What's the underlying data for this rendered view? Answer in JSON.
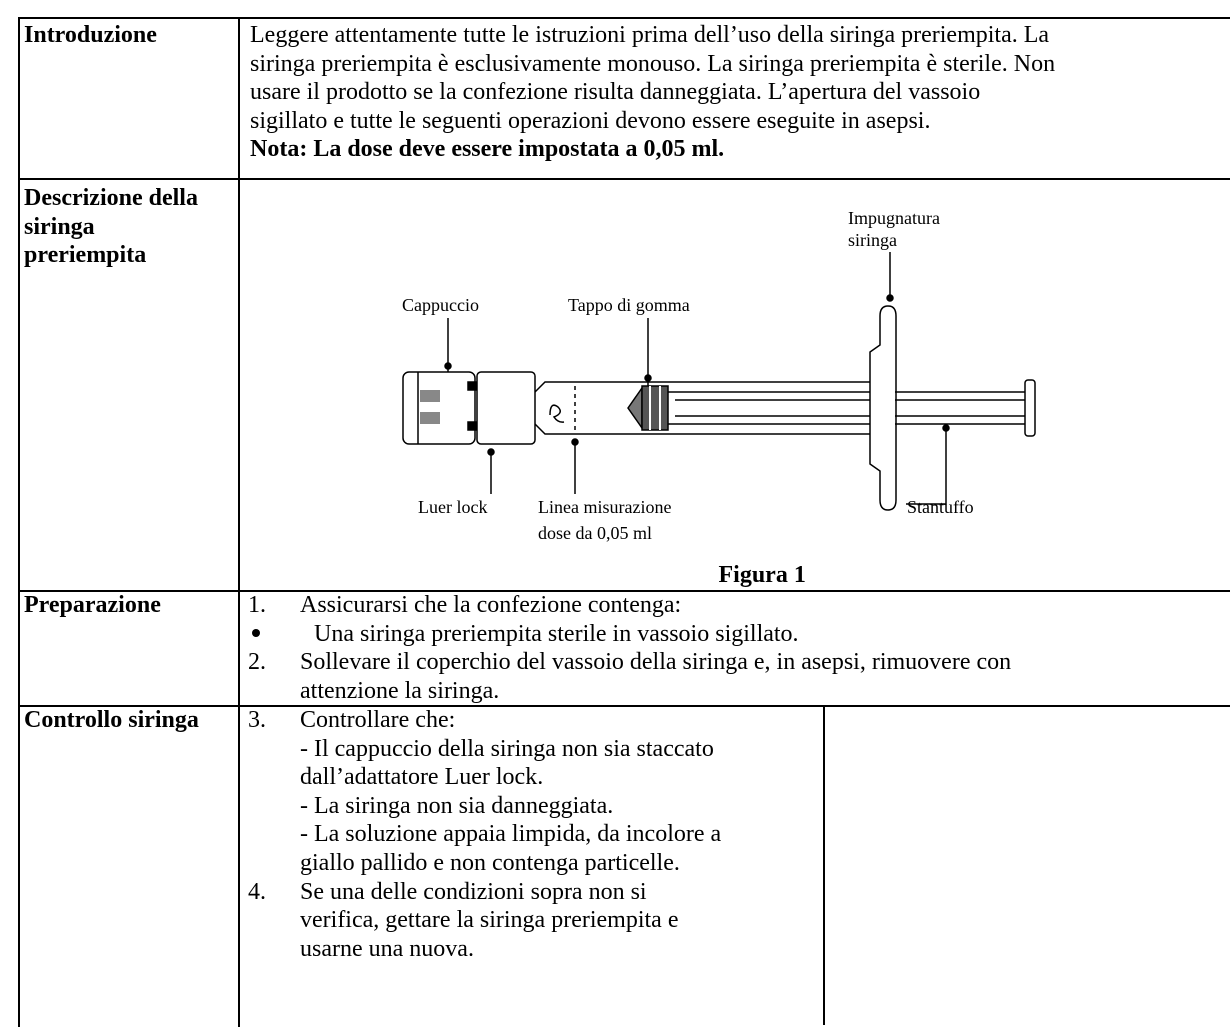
{
  "rows": [
    {
      "label": "Introduzione",
      "lines": [
        "Leggere attentamente tutte le istruzioni prima dell’uso della siringa preriempita. La",
        "siringa preriempita è esclusivamente monouso. La siringa preriempita è sterile. Non",
        "usare il prodotto se la confezione risulta danneggiata. L’apertura del vassoio",
        "sigillato e tutte le seguenti operazioni devono essere eseguite in asepsi."
      ],
      "note": "Nota: La dose deve essere impostata a 0,05 ml."
    },
    {
      "label_lines": [
        "Descrizione della",
        "siringa",
        "preriempita"
      ],
      "figure": {
        "grip": [
          "Impugnatura",
          "siringa"
        ],
        "cap": "Cappuccio",
        "stopper": "Tappo di gomma",
        "luer": "Luer lock",
        "dose_line": [
          "Linea misurazione",
          "dose da 0,05 ml"
        ],
        "plunger": "Stantuffo",
        "caption": "Figura 1"
      }
    },
    {
      "label": "Preparazione",
      "items": [
        {
          "marker": "1.",
          "lines": [
            "Assicurarsi che la confezione contenga:"
          ]
        },
        {
          "lines": [
            "Una siringa preriempita sterile in vassoio sigillato."
          ]
        },
        {
          "marker": "2.",
          "lines": [
            "Sollevare il coperchio del vassoio della siringa e, in asepsi, rimuovere con",
            "attenzione la siringa."
          ]
        }
      ]
    },
    {
      "label": "Controllo siringa",
      "items": [
        {
          "marker": "3.",
          "lines": [
            "Controllare che:",
            "- Il cappuccio della siringa non sia staccato",
            "dall’adattatore Luer lock.",
            "- La siringa non sia danneggiata.",
            "- La soluzione appaia limpida, da incolore a",
            "giallo pallido e non contenga particelle."
          ]
        },
        {
          "marker": "4.",
          "lines": [
            "Se una delle condizioni sopra non si",
            "verifica, gettare la siringa preriempita e",
            "usarne una nuova."
          ]
        }
      ]
    }
  ]
}
